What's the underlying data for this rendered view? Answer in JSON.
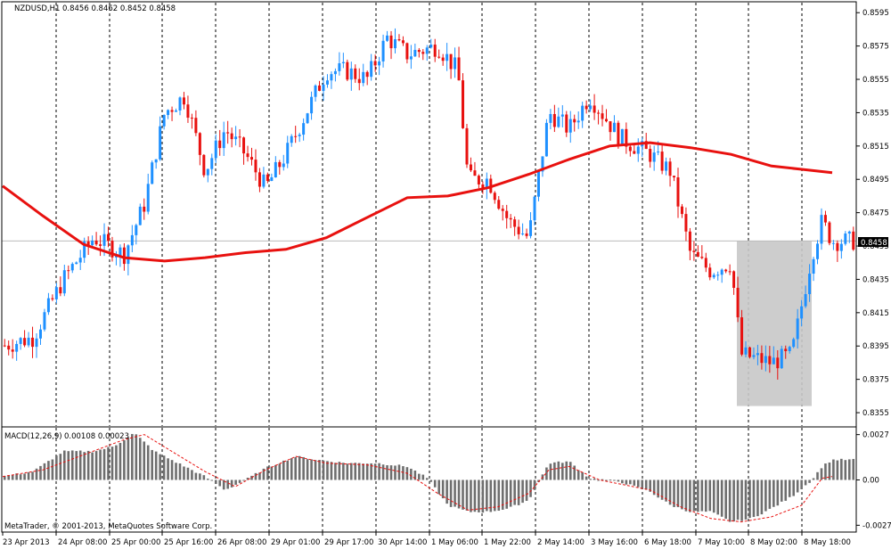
{
  "main_header": {
    "symbol": "NZDUSD,H1",
    "ohlc": "0.8456 0.8462 0.8452 0.8458"
  },
  "macd_header": {
    "label": "MACD(12,26,9)",
    "values": "0.00108 0.00023"
  },
  "copyright": "MetaTrader, © 2001-2013, MetaQuotes Software Corp.",
  "colors": {
    "up": "#1e90ff",
    "down": "#e8110f",
    "ma": "#e8110f",
    "hist": "#6e6e6e",
    "signal": "#e8110f",
    "grid": "#000000",
    "box": "#c8c8c8"
  },
  "chart_data": {
    "type": "candlestick",
    "price_axis": {
      "ticks": [
        "0.8595",
        "0.8575",
        "0.8555",
        "0.8535",
        "0.8515",
        "0.8495",
        "0.8475",
        "0.8455",
        "0.8435",
        "0.8415",
        "0.8395",
        "0.8375",
        "0.8355"
      ],
      "range": [
        0.8347,
        0.8601
      ],
      "current_price": "0.8458"
    },
    "time_axis": {
      "labels": [
        "23 Apr 2013",
        "24 Apr 08:00",
        "25 Apr 00:00",
        "25 Apr 16:00",
        "26 Apr 08:00",
        "29 Apr 01:00",
        "29 Apr 17:00",
        "30 Apr 14:00",
        "1 May 06:00",
        "1 May 22:00",
        "2 May 14:00",
        "3 May 16:00",
        "6 May 18:00",
        "7 May 10:00",
        "8 May 02:00",
        "8 May 18:00"
      ],
      "bars_total": 214
    },
    "moving_average": [
      [
        0,
        0.8491
      ],
      [
        20,
        0.8473
      ],
      [
        40,
        0.8456
      ],
      [
        60,
        0.8448
      ],
      [
        80,
        0.8446
      ],
      [
        100,
        0.8448
      ],
      [
        120,
        0.8451
      ],
      [
        140,
        0.8453
      ],
      [
        160,
        0.846
      ],
      [
        180,
        0.8472
      ],
      [
        200,
        0.8484
      ],
      [
        220,
        0.8485
      ],
      [
        240,
        0.849
      ],
      [
        260,
        0.8498
      ],
      [
        280,
        0.8507
      ],
      [
        300,
        0.8515
      ],
      [
        320,
        0.8517
      ],
      [
        340,
        0.8514
      ],
      [
        360,
        0.851
      ],
      [
        380,
        0.8503
      ],
      [
        395,
        0.8501
      ],
      [
        410,
        0.8499
      ]
    ],
    "candles_anchor": [
      [
        0,
        0.8395
      ],
      [
        15,
        0.84
      ],
      [
        30,
        0.8435
      ],
      [
        45,
        0.846
      ],
      [
        60,
        0.845
      ],
      [
        70,
        0.848
      ],
      [
        80,
        0.8535
      ],
      [
        90,
        0.8545
      ],
      [
        100,
        0.85
      ],
      [
        110,
        0.8525
      ],
      [
        120,
        0.851
      ],
      [
        130,
        0.849
      ],
      [
        140,
        0.851
      ],
      [
        150,
        0.8535
      ],
      [
        160,
        0.856
      ],
      [
        170,
        0.856
      ],
      [
        180,
        0.8555
      ],
      [
        190,
        0.858
      ],
      [
        200,
        0.857
      ],
      [
        215,
        0.8575
      ],
      [
        225,
        0.856
      ],
      [
        230,
        0.8495
      ],
      [
        240,
        0.8495
      ],
      [
        250,
        0.847
      ],
      [
        260,
        0.846
      ],
      [
        270,
        0.8535
      ],
      [
        280,
        0.8525
      ],
      [
        290,
        0.8545
      ],
      [
        305,
        0.852
      ],
      [
        320,
        0.851
      ],
      [
        330,
        0.85
      ],
      [
        340,
        0.845
      ],
      [
        350,
        0.844
      ],
      [
        360,
        0.8445
      ],
      [
        365,
        0.839
      ],
      [
        380,
        0.8385
      ],
      [
        390,
        0.839
      ],
      [
        400,
        0.845
      ],
      [
        405,
        0.847
      ],
      [
        410,
        0.8458
      ]
    ],
    "macd_axis": {
      "ticks": [
        "0.0027",
        "0.00",
        "-0.0027"
      ],
      "range": [
        -0.003,
        0.003
      ]
    },
    "macd_hist_anchor": [
      [
        0,
        0.0002
      ],
      [
        15,
        0.0005
      ],
      [
        30,
        0.0017
      ],
      [
        45,
        0.0017
      ],
      [
        55,
        0.002
      ],
      [
        65,
        0.0028
      ],
      [
        75,
        0.0017
      ],
      [
        90,
        0.0008
      ],
      [
        100,
        0.0002
      ],
      [
        110,
        -0.0006
      ],
      [
        120,
        0.0
      ],
      [
        130,
        0.0007
      ],
      [
        145,
        0.0014
      ],
      [
        155,
        0.0012
      ],
      [
        170,
        0.001
      ],
      [
        185,
        0.001
      ],
      [
        200,
        0.0008
      ],
      [
        210,
        0.0001
      ],
      [
        220,
        -0.0015
      ],
      [
        230,
        -0.0019
      ],
      [
        240,
        -0.0019
      ],
      [
        250,
        -0.0017
      ],
      [
        260,
        -0.0012
      ],
      [
        270,
        0.001
      ],
      [
        280,
        0.0011
      ],
      [
        290,
        0.0001
      ],
      [
        305,
        -0.0001
      ],
      [
        320,
        -0.0007
      ],
      [
        330,
        -0.0015
      ],
      [
        340,
        -0.0019
      ],
      [
        350,
        -0.0019
      ],
      [
        360,
        -0.0025
      ],
      [
        370,
        -0.0023
      ],
      [
        380,
        -0.0017
      ],
      [
        390,
        -0.001
      ],
      [
        400,
        0.0
      ],
      [
        405,
        0.0008
      ],
      [
        410,
        0.0012
      ]
    ],
    "macd_signal_anchor": [
      [
        0,
        0.0002
      ],
      [
        20,
        0.0006
      ],
      [
        40,
        0.0015
      ],
      [
        60,
        0.0024
      ],
      [
        70,
        0.0027
      ],
      [
        85,
        0.0016
      ],
      [
        100,
        0.0005
      ],
      [
        115,
        -0.0004
      ],
      [
        130,
        0.0006
      ],
      [
        145,
        0.0014
      ],
      [
        160,
        0.001
      ],
      [
        180,
        0.0009
      ],
      [
        200,
        0.0004
      ],
      [
        215,
        -0.0008
      ],
      [
        230,
        -0.0018
      ],
      [
        245,
        -0.0016
      ],
      [
        260,
        -0.0008
      ],
      [
        270,
        0.0006
      ],
      [
        280,
        0.0008
      ],
      [
        295,
        0.0
      ],
      [
        320,
        -0.0006
      ],
      [
        335,
        -0.0016
      ],
      [
        350,
        -0.0023
      ],
      [
        365,
        -0.0025
      ],
      [
        380,
        -0.0022
      ],
      [
        395,
        -0.0015
      ],
      [
        405,
        0.0001
      ],
      [
        410,
        0.0002
      ]
    ],
    "highlight_box": {
      "price_top": 0.8458,
      "price_bottom": 0.8359
    }
  }
}
